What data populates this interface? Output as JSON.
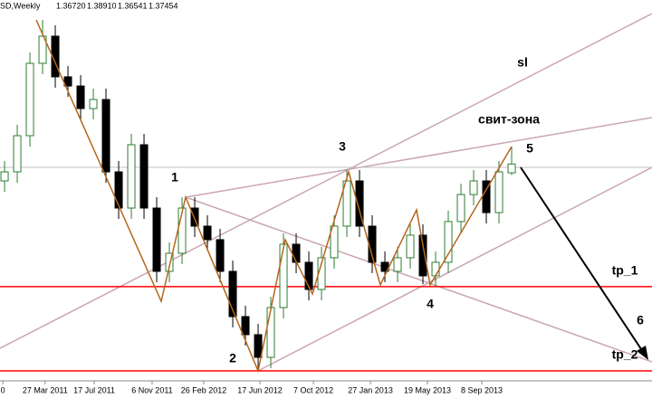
{
  "chart_data": {
    "type": "candlestick",
    "header": {
      "symbol": "SD,Weekly",
      "ohlc": [
        "1.36720",
        "1.38910",
        "1.36541",
        "1.37454"
      ]
    },
    "open": [
      1.3605,
      1.368,
      1.398,
      1.458,
      1.4805,
      1.4468,
      1.4392,
      1.4205,
      1.428,
      1.368,
      1.338,
      1.3905,
      1.338,
      1.2855,
      1.3005,
      1.338,
      1.323,
      1.3118,
      1.2855,
      1.248,
      1.233,
      1.2142,
      1.2555,
      1.308,
      1.293,
      1.2705,
      1.2968,
      1.323,
      1.3605,
      1.323,
      1.293,
      1.2855,
      1.2968,
      1.3155,
      1.2818,
      1.293,
      1.3268,
      1.3492,
      1.3605,
      1.3342,
      1.3672
    ],
    "high": [
      1.377,
      1.407,
      1.467,
      1.494,
      1.4895,
      1.4558,
      1.4482,
      1.437,
      1.437,
      1.377,
      1.3995,
      1.3995,
      1.347,
      1.3095,
      1.347,
      1.347,
      1.332,
      1.3208,
      1.2945,
      1.257,
      1.242,
      1.2645,
      1.317,
      1.317,
      1.302,
      1.3058,
      1.332,
      1.37,
      1.3695,
      1.332,
      1.302,
      1.3058,
      1.3245,
      1.3245,
      1.302,
      1.3358,
      1.3582,
      1.3695,
      1.3695,
      1.377,
      1.3891
    ],
    "low": [
      1.3515,
      1.359,
      1.389,
      1.449,
      1.4378,
      1.4302,
      1.4115,
      1.4115,
      1.359,
      1.329,
      1.329,
      1.329,
      1.2765,
      1.2765,
      1.2915,
      1.314,
      1.3028,
      1.2765,
      1.239,
      1.224,
      1.203,
      1.2052,
      1.2465,
      1.284,
      1.2615,
      1.2615,
      1.2878,
      1.314,
      1.314,
      1.284,
      1.2765,
      1.2765,
      1.2878,
      1.275,
      1.2728,
      1.284,
      1.3178,
      1.3402,
      1.3252,
      1.3252,
      1.3654
    ],
    "close": [
      1.368,
      1.398,
      1.458,
      1.4805,
      1.4468,
      1.4392,
      1.4205,
      1.428,
      1.368,
      1.338,
      1.3905,
      1.338,
      1.2855,
      1.3005,
      1.338,
      1.323,
      1.3118,
      1.2855,
      1.248,
      1.233,
      1.2142,
      1.2555,
      1.308,
      1.293,
      1.2705,
      1.2968,
      1.323,
      1.3605,
      1.323,
      1.293,
      1.2855,
      1.2968,
      1.3155,
      1.2818,
      1.293,
      1.3268,
      1.3492,
      1.3605,
      1.3342,
      1.368,
      1.3745
    ],
    "up_color": "#2e7d32",
    "down_color": "#000000",
    "ylim": [
      1.5105,
      1.1805
    ],
    "xlim": [
      -0.36,
      51.07
    ],
    "xticks": [
      {
        "value": -0.14,
        "label": "0"
      },
      {
        "value": 3.2,
        "label": "27 Mar 2011"
      },
      {
        "value": 7.07,
        "label": "17 Jul 2011"
      },
      {
        "value": 11.64,
        "label": "6 Nov 2011"
      },
      {
        "value": 15.71,
        "label": "26 Feb 2012"
      },
      {
        "value": 20.14,
        "label": "17 Jun 2012"
      },
      {
        "value": 24.36,
        "label": "7 Oct 2012"
      },
      {
        "value": 28.86,
        "label": "27 Jan 2013"
      },
      {
        "value": 33.36,
        "label": "19 May 2013"
      },
      {
        "value": 37.64,
        "label": "8 Sep 2013"
      }
    ],
    "levels": [
      {
        "name": "tp_1",
        "value": 1.2728,
        "color": "#ff0000"
      },
      {
        "name": "tp_2",
        "value": 1.203,
        "color": "#ff0000"
      }
    ],
    "annotations": [
      "1",
      "2",
      "3",
      "4",
      "5",
      "6",
      "sl",
      "свит-зона"
    ]
  }
}
